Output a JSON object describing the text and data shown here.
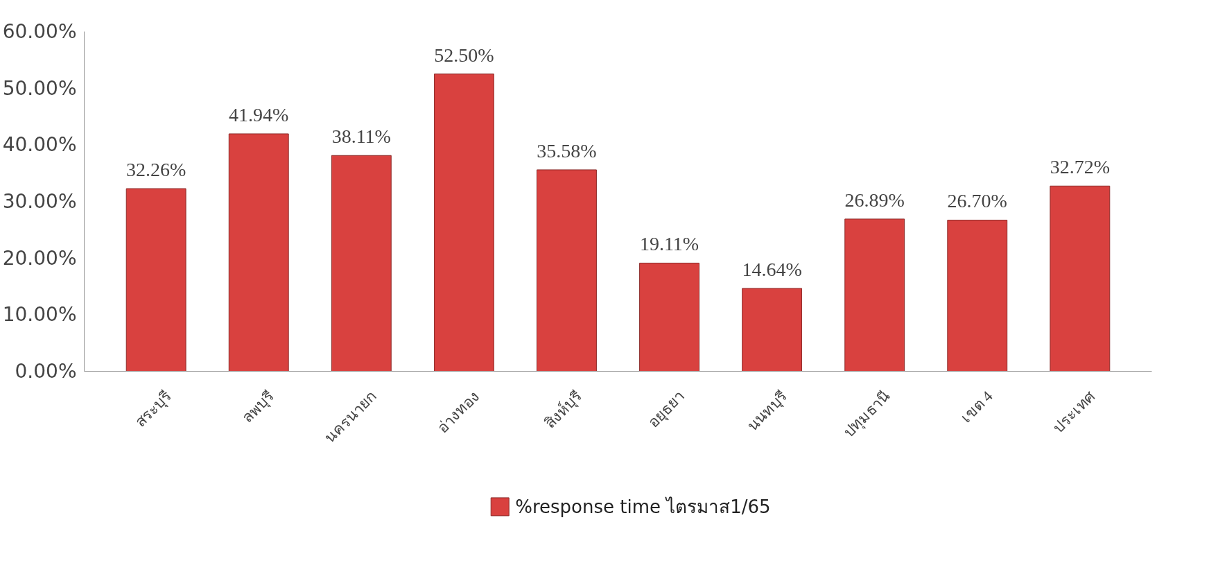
{
  "chart_data": {
    "type": "bar",
    "categories": [
      "สระบุรี",
      "ลพบุรี",
      "นครนายก",
      "อ่างทอง",
      "สิงห์บุรี",
      "อยุธยา",
      "นนทบุรี",
      "ปทุมธานี",
      "เขต 4",
      "ประเทศ"
    ],
    "series": [
      {
        "name": "%response time ไตรมาส1/65",
        "color": "#d9413f",
        "values": [
          32.26,
          41.94,
          38.11,
          52.5,
          35.58,
          19.11,
          14.64,
          26.89,
          26.7,
          32.72
        ],
        "value_labels": [
          "32.26%",
          "41.94%",
          "38.11%",
          "52.50%",
          "35.58%",
          "19.11%",
          "14.64%",
          "26.89%",
          "26.70%",
          "32.72%"
        ]
      }
    ],
    "ylim": [
      0,
      60
    ],
    "yticks": [
      {
        "value": 0,
        "label": "0.00%"
      },
      {
        "value": 10,
        "label": "10.00%"
      },
      {
        "value": 20,
        "label": "20.00%"
      },
      {
        "value": 30,
        "label": "30.00%"
      },
      {
        "value": 40,
        "label": "40.00%"
      },
      {
        "value": 50,
        "label": "50.00%"
      },
      {
        "value": 60,
        "label": "60.00%"
      }
    ],
    "grid": false,
    "legend": "bottom"
  }
}
